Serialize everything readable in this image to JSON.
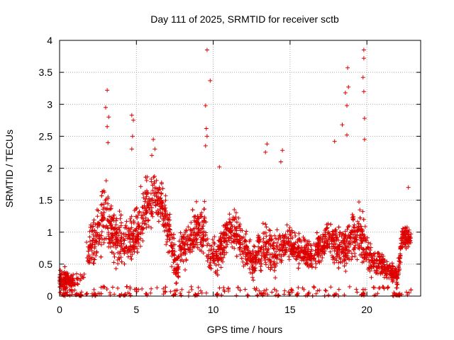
{
  "chart_data": {
    "type": "scatter",
    "title": "Day 111 of 2025, SRMTID for receiver sctb",
    "xlabel": "GPS time / hours",
    "ylabel": "SRMTID / TECUs",
    "xlim": [
      0,
      23.5
    ],
    "ylim": [
      0,
      4
    ],
    "xticks": [
      0,
      5,
      10,
      15,
      20
    ],
    "yticks": [
      0,
      0.5,
      1,
      1.5,
      2,
      2.5,
      3,
      3.5,
      4
    ],
    "xtick_labels": [
      "0",
      "5",
      "10",
      "15",
      "20"
    ],
    "ytick_labels": [
      "0",
      "0.5",
      "1",
      "1.5",
      "2",
      "2.5",
      "3",
      "3.5",
      "4"
    ],
    "grid": true,
    "marker": "+",
    "marker_color": "#dd0000",
    "n_points": 3200,
    "envelope": {
      "hours": [
        0,
        0.3,
        0.8,
        1.5,
        2,
        2.5,
        3,
        3.3,
        3.8,
        4.3,
        4.8,
        5.2,
        5.7,
        6.2,
        6.7,
        7.2,
        7.6,
        8,
        8.5,
        9,
        9.5,
        9.8,
        10.2,
        10.6,
        11,
        11.5,
        12,
        12.5,
        13,
        13.5,
        14,
        14.5,
        15,
        15.5,
        16,
        16.5,
        17,
        17.5,
        18,
        18.5,
        19,
        19.5,
        20,
        20.5,
        21,
        21.5,
        22,
        22.3,
        22.8
      ],
      "typical": [
        0.25,
        0.3,
        0.2,
        0.35,
        0.8,
        1.0,
        1.3,
        1.0,
        0.9,
        0.8,
        0.9,
        1.1,
        1.4,
        1.6,
        1.4,
        0.9,
        0.4,
        0.8,
        0.9,
        1.1,
        1.0,
        0.6,
        0.6,
        0.8,
        1.1,
        1.0,
        0.8,
        0.5,
        0.7,
        0.8,
        0.7,
        0.8,
        0.8,
        0.7,
        0.7,
        0.6,
        0.8,
        0.9,
        0.8,
        0.7,
        0.9,
        1.0,
        0.7,
        0.5,
        0.5,
        0.4,
        0.3,
        0.9,
        0.95
      ],
      "spread": [
        0.3,
        0.3,
        0.2,
        0.3,
        0.6,
        0.7,
        0.9,
        0.8,
        0.7,
        0.6,
        0.7,
        0.7,
        0.7,
        0.6,
        0.6,
        0.6,
        0.4,
        0.5,
        0.6,
        0.7,
        0.8,
        0.5,
        0.5,
        0.5,
        0.6,
        0.5,
        0.5,
        0.4,
        0.5,
        0.6,
        0.5,
        0.5,
        0.5,
        0.4,
        0.4,
        0.4,
        0.5,
        0.5,
        0.5,
        0.5,
        0.6,
        0.7,
        0.5,
        0.4,
        0.3,
        0.3,
        0.3,
        0.3,
        0.3
      ]
    },
    "spikes": [
      {
        "x": 3.1,
        "y": 3.22
      },
      {
        "x": 3.0,
        "y": 2.95
      },
      {
        "x": 3.2,
        "y": 2.8
      },
      {
        "x": 3.1,
        "y": 2.65
      },
      {
        "x": 3.15,
        "y": 2.4
      },
      {
        "x": 4.7,
        "y": 2.83
      },
      {
        "x": 4.8,
        "y": 2.75
      },
      {
        "x": 4.75,
        "y": 2.5
      },
      {
        "x": 4.7,
        "y": 2.3
      },
      {
        "x": 6.1,
        "y": 2.45
      },
      {
        "x": 6.2,
        "y": 2.3
      },
      {
        "x": 6.0,
        "y": 2.2
      },
      {
        "x": 9.6,
        "y": 3.85
      },
      {
        "x": 9.5,
        "y": 2.98
      },
      {
        "x": 9.8,
        "y": 3.37
      },
      {
        "x": 9.55,
        "y": 2.62
      },
      {
        "x": 9.6,
        "y": 2.5
      },
      {
        "x": 9.5,
        "y": 2.35
      },
      {
        "x": 13.5,
        "y": 2.38
      },
      {
        "x": 13.4,
        "y": 2.25
      },
      {
        "x": 14.5,
        "y": 2.28
      },
      {
        "x": 14.4,
        "y": 2.1
      },
      {
        "x": 17.9,
        "y": 2.42
      },
      {
        "x": 18.4,
        "y": 2.68
      },
      {
        "x": 18.6,
        "y": 3.18
      },
      {
        "x": 18.75,
        "y": 3.57
      },
      {
        "x": 18.8,
        "y": 3.27
      },
      {
        "x": 18.7,
        "y": 2.98
      },
      {
        "x": 18.7,
        "y": 2.52
      },
      {
        "x": 19.8,
        "y": 3.85
      },
      {
        "x": 19.8,
        "y": 3.72
      },
      {
        "x": 19.75,
        "y": 3.42
      },
      {
        "x": 19.8,
        "y": 3.2
      },
      {
        "x": 19.85,
        "y": 2.78
      },
      {
        "x": 19.85,
        "y": 2.45
      },
      {
        "x": 22.7,
        "y": 1.7
      },
      {
        "x": 10.4,
        "y": 2.02
      }
    ],
    "zero_clusters": [
      {
        "from": 0.2,
        "to": 0.5
      },
      {
        "from": 1.0,
        "to": 1.8
      },
      {
        "from": 2.1,
        "to": 2.4
      },
      {
        "from": 4.0,
        "to": 4.3
      },
      {
        "from": 5.6,
        "to": 5.7
      },
      {
        "from": 7.4,
        "to": 7.6
      },
      {
        "from": 8.8,
        "to": 9.0
      },
      {
        "from": 10.1,
        "to": 10.3
      },
      {
        "from": 12.2,
        "to": 12.3
      },
      {
        "from": 13.2,
        "to": 13.3
      },
      {
        "from": 14.2,
        "to": 14.3
      },
      {
        "from": 15.4,
        "to": 15.5
      },
      {
        "from": 16.1,
        "to": 16.2
      },
      {
        "from": 17.8,
        "to": 18.0
      },
      {
        "from": 19.6,
        "to": 19.9
      },
      {
        "from": 21.7,
        "to": 22.3
      }
    ],
    "seed": 111
  }
}
